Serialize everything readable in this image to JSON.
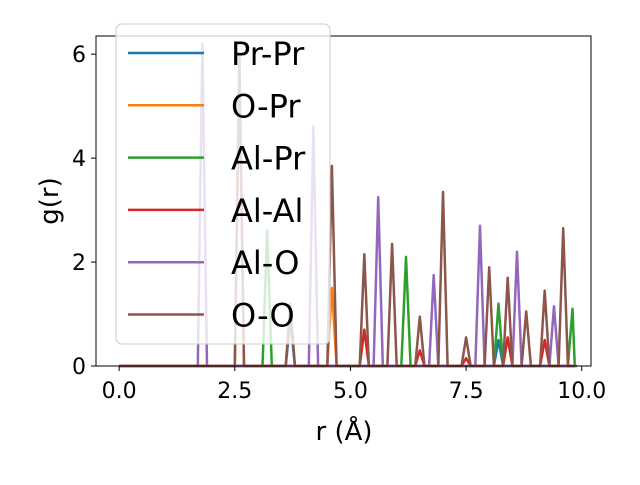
{
  "chart_data": {
    "type": "line",
    "title": "",
    "xlabel": "r (Å)",
    "ylabel": "g(r)",
    "xlim": [
      -0.5,
      10.2
    ],
    "ylim": [
      0,
      6.35
    ],
    "xticks": [
      0.0,
      2.5,
      5.0,
      7.5,
      10.0
    ],
    "xtick_labels": [
      "0.0",
      "2.5",
      "5.0",
      "7.5",
      "10.0"
    ],
    "yticks": [
      0,
      2,
      4,
      6
    ],
    "ytick_labels": [
      "0",
      "2",
      "4",
      "6"
    ],
    "grid": false,
    "legend_position": "upper-left",
    "peak_half_width": 0.1,
    "series": [
      {
        "name": "Pr-Pr",
        "color": "#1f77b4",
        "range": [
          0,
          9.85
        ],
        "peaks": [
          [
            3.7,
            0.9
          ],
          [
            8.2,
            0.5
          ]
        ]
      },
      {
        "name": "O-Pr",
        "color": "#ff7f0e",
        "range": [
          0,
          9.85
        ],
        "peaks": [
          [
            2.6,
            5.8
          ],
          [
            4.6,
            1.5
          ]
        ]
      },
      {
        "name": "Al-Pr",
        "color": "#2ca02c",
        "range": [
          0,
          9.85
        ],
        "peaks": [
          [
            3.2,
            2.6
          ],
          [
            6.2,
            2.1
          ],
          [
            8.2,
            1.2
          ],
          [
            9.8,
            1.1
          ]
        ]
      },
      {
        "name": "Al-Al",
        "color": "#d62728",
        "range": [
          0,
          9.85
        ],
        "peaks": [
          [
            5.3,
            0.7
          ],
          [
            6.5,
            0.3
          ],
          [
            7.5,
            0.15
          ],
          [
            8.4,
            0.55
          ],
          [
            9.2,
            0.5
          ]
        ]
      },
      {
        "name": "Al-O",
        "color": "#9467bd",
        "range": [
          0,
          9.85
        ],
        "peaks": [
          [
            1.8,
            6.2
          ],
          [
            4.2,
            4.6
          ],
          [
            5.6,
            3.25
          ],
          [
            6.8,
            1.75
          ],
          [
            7.8,
            2.7
          ],
          [
            8.6,
            2.2
          ],
          [
            9.4,
            1.15
          ]
        ]
      },
      {
        "name": "O-O",
        "color": "#8c564b",
        "range": [
          0,
          9.85
        ],
        "peaks": [
          [
            2.6,
            6.0
          ],
          [
            3.7,
            1.2
          ],
          [
            4.6,
            3.85
          ],
          [
            5.3,
            2.15
          ],
          [
            5.9,
            2.35
          ],
          [
            6.5,
            0.95
          ],
          [
            7.0,
            3.35
          ],
          [
            7.5,
            0.55
          ],
          [
            8.0,
            1.9
          ],
          [
            8.4,
            1.7
          ],
          [
            8.8,
            1.05
          ],
          [
            9.2,
            1.45
          ],
          [
            9.6,
            2.65
          ]
        ]
      }
    ]
  }
}
